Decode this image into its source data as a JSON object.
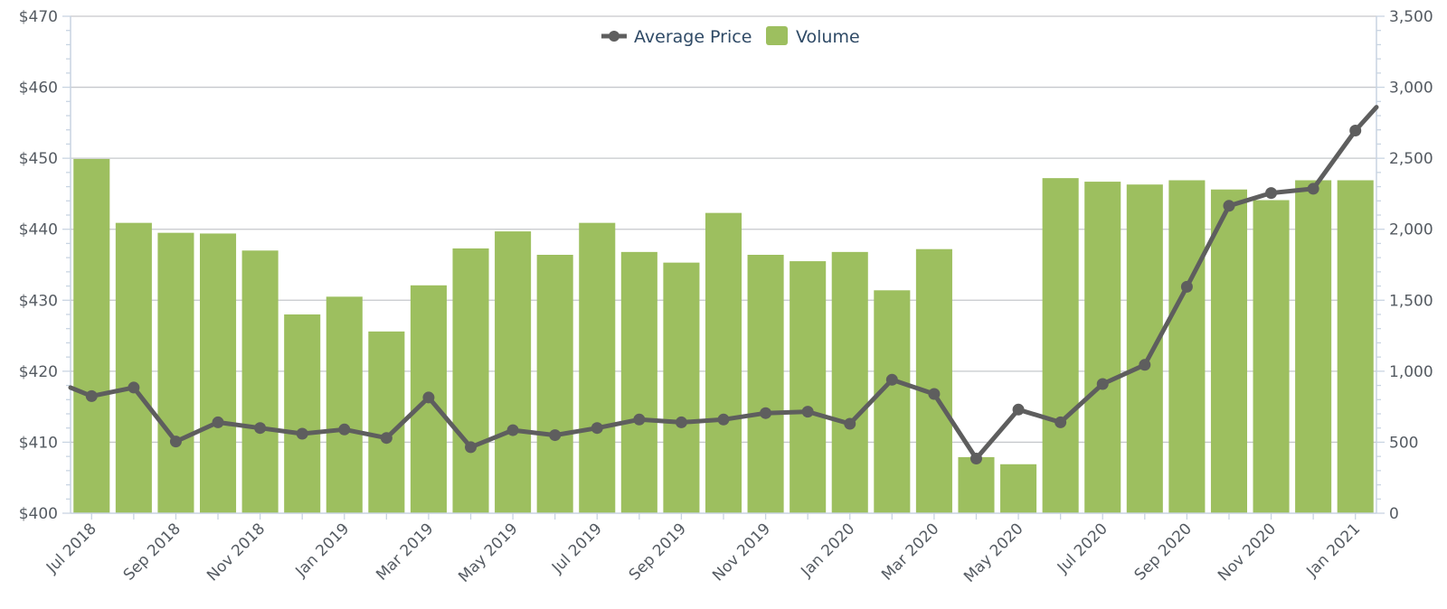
{
  "chart_data": {
    "type": "bar",
    "title": "",
    "xlabel": "",
    "ylabel": "",
    "legend": {
      "placement": "top-center",
      "line_label": "Average Price",
      "bar_label": "Volume"
    },
    "categories": [
      "Jul 2018",
      "Aug 2018",
      "Sep 2018",
      "Oct 2018",
      "Nov 2018",
      "Dec 2018",
      "Jan 2019",
      "Feb 2019",
      "Mar 2019",
      "Apr 2019",
      "May 2019",
      "Jun 2019",
      "Jul 2019",
      "Aug 2019",
      "Sep 2019",
      "Oct 2019",
      "Nov 2019",
      "Dec 2019",
      "Jan 2020",
      "Feb 2020",
      "Mar 2020",
      "Apr 2020",
      "May 2020",
      "Jun 2020",
      "Jul 2020",
      "Aug 2020",
      "Sep 2020",
      "Oct 2020",
      "Nov 2020",
      "Dec 2020",
      "Jan 2021"
    ],
    "x_tick_labels": [
      "Jul 2018",
      "Sep 2018",
      "Nov 2018",
      "Jan 2019",
      "Mar 2019",
      "May 2019",
      "Jul 2019",
      "Sep 2019",
      "Nov 2019",
      "Jan 2020",
      "Mar 2020",
      "May 2020",
      "Jul 2020",
      "Sep 2020",
      "Nov 2020",
      "Jan 2021"
    ],
    "series": [
      {
        "name": "Volume",
        "type": "bar",
        "axis": "right",
        "color": "#9dbf5f",
        "values": [
          2495,
          2045,
          1975,
          1970,
          1850,
          1400,
          1525,
          1280,
          1605,
          1865,
          1985,
          1820,
          2045,
          1840,
          1765,
          2115,
          1820,
          1775,
          1840,
          1570,
          1860,
          395,
          345,
          2360,
          2335,
          2315,
          2345,
          2280,
          2205,
          2345,
          2345
        ]
      },
      {
        "name": "Average Price",
        "type": "line",
        "axis": "left",
        "color": "#5e5e5e",
        "values": [
          416.5,
          417.7,
          410.1,
          412.8,
          412.0,
          411.2,
          411.8,
          410.6,
          416.3,
          409.3,
          411.7,
          411.0,
          412.0,
          413.2,
          412.8,
          413.2,
          414.1,
          414.3,
          412.6,
          418.8,
          416.8,
          407.7,
          414.6,
          412.8,
          418.2,
          420.9,
          431.9,
          443.3,
          445.1,
          445.7,
          453.9
        ]
      }
    ],
    "y_left": {
      "min": 400,
      "max": 470,
      "ticks": [
        "$400",
        "$410",
        "$420",
        "$430",
        "$440",
        "$450",
        "$460",
        "$470"
      ]
    },
    "y_right": {
      "min": 0,
      "max": 3500,
      "ticks": [
        "0",
        "500",
        "1,000",
        "1,500",
        "2,000",
        "2,500",
        "3,000",
        "3,500"
      ]
    },
    "grid": true,
    "colors": {
      "grid": "#c6c8cc",
      "axis": "#c8d4e2",
      "text": "#555b62",
      "legend_text": "#2f4a66"
    }
  }
}
